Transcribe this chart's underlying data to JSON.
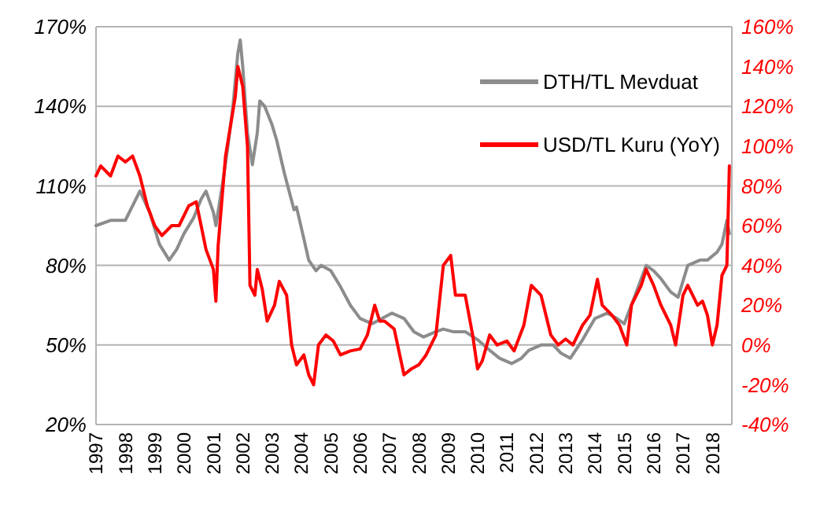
{
  "chart_data": {
    "type": "line",
    "grid": "y",
    "legend": "top right",
    "xlim": [
      "1997-01",
      "2018-09"
    ],
    "xticks": [
      "1997",
      "1998",
      "1999",
      "2000",
      "2001",
      "2002",
      "2003",
      "2004",
      "2005",
      "2006",
      "2007",
      "2008",
      "2009",
      "2010",
      "2011",
      "2012",
      "2013",
      "2014",
      "2015",
      "2016",
      "2017",
      "2018"
    ],
    "ylim": [
      20,
      170
    ],
    "yticks": [
      {
        "value": 20,
        "label": "20%"
      },
      {
        "value": 50,
        "label": "50%"
      },
      {
        "value": 80,
        "label": "80%"
      },
      {
        "value": 110,
        "label": "110%"
      },
      {
        "value": 140,
        "label": "140%"
      },
      {
        "value": 170,
        "label": "170%"
      }
    ],
    "y2lim": [
      -40,
      160
    ],
    "y2ticks": [
      {
        "value": -40,
        "label": "-40%"
      },
      {
        "value": -20,
        "label": "-20%"
      },
      {
        "value": 0,
        "label": "0%"
      },
      {
        "value": 20,
        "label": "20%"
      },
      {
        "value": 40,
        "label": "40%"
      },
      {
        "value": 60,
        "label": "60%"
      },
      {
        "value": 80,
        "label": "80%"
      },
      {
        "value": 100,
        "label": "100%"
      },
      {
        "value": 120,
        "label": "120%"
      },
      {
        "value": 140,
        "label": "140%"
      },
      {
        "value": 160,
        "label": "160%"
      }
    ],
    "series": [
      {
        "name": "DTH/TL Mevduat",
        "color": "#8c8c8c",
        "x": [
          "1997-01",
          "1997-07",
          "1998-01",
          "1998-07",
          "1998-11",
          "1999-03",
          "1999-07",
          "1999-10",
          "2000-01",
          "2000-05",
          "2000-08",
          "2000-10",
          "2001-01",
          "2001-02",
          "2001-05",
          "2001-07",
          "2001-09",
          "2001-11",
          "2001-12",
          "2002-01",
          "2002-03",
          "2002-05",
          "2002-07",
          "2002-08",
          "2002-10",
          "2003-01",
          "2003-03",
          "2003-06",
          "2003-08",
          "2003-10",
          "2003-11",
          "2004-02",
          "2004-04",
          "2004-07",
          "2004-09",
          "2005-01",
          "2005-05",
          "2005-09",
          "2006-01",
          "2006-06",
          "2006-10",
          "2007-02",
          "2007-07",
          "2007-11",
          "2008-03",
          "2008-08",
          "2008-11",
          "2009-03",
          "2009-08",
          "2010-01",
          "2010-06",
          "2010-10",
          "2011-03",
          "2011-07",
          "2011-10",
          "2012-03",
          "2012-08",
          "2012-11",
          "2013-03",
          "2013-08",
          "2014-01",
          "2014-06",
          "2014-10",
          "2015-01",
          "2015-06",
          "2015-10",
          "2016-01",
          "2016-04",
          "2016-08",
          "2016-11",
          "2017-03",
          "2017-08",
          "2017-11",
          "2018-03",
          "2018-05",
          "2018-07",
          "2018-08"
        ],
        "values": [
          95,
          97,
          97,
          108,
          100,
          88,
          82,
          86,
          92,
          98,
          105,
          108,
          100,
          95,
          112,
          125,
          140,
          160,
          165,
          155,
          130,
          118,
          130,
          142,
          140,
          133,
          127,
          115,
          108,
          101,
          102,
          90,
          82,
          78,
          80,
          78,
          72,
          65,
          60,
          58,
          60,
          62,
          60,
          55,
          53,
          55,
          56,
          55,
          55,
          52,
          48,
          45,
          43,
          45,
          48,
          50,
          50,
          47,
          45,
          52,
          60,
          62,
          60,
          58,
          70,
          80,
          78,
          75,
          70,
          68,
          80,
          82,
          82,
          85,
          88,
          97,
          92
        ]
      },
      {
        "name": "USD/TL Kuru (YoY)",
        "color": "#ff0000",
        "axis": "y2",
        "x": [
          "1997-01",
          "1997-03",
          "1997-07",
          "1997-10",
          "1998-01",
          "1998-04",
          "1998-07",
          "1998-10",
          "1999-01",
          "1999-04",
          "1999-08",
          "1999-11",
          "2000-03",
          "2000-06",
          "2000-08",
          "2000-10",
          "2001-01",
          "2001-02",
          "2001-03",
          "2001-06",
          "2001-08",
          "2001-10",
          "2001-11",
          "2002-01",
          "2002-03",
          "2002-04",
          "2002-06",
          "2002-07",
          "2002-09",
          "2002-11",
          "2003-02",
          "2003-04",
          "2003-07",
          "2003-09",
          "2003-11",
          "2004-02",
          "2004-04",
          "2004-06",
          "2004-08",
          "2004-11",
          "2005-02",
          "2005-05",
          "2005-09",
          "2006-01",
          "2006-04",
          "2006-07",
          "2006-09",
          "2006-11",
          "2007-03",
          "2007-07",
          "2007-10",
          "2008-01",
          "2008-04",
          "2008-08",
          "2008-11",
          "2009-02",
          "2009-04",
          "2009-08",
          "2009-11",
          "2010-01",
          "2010-03",
          "2010-06",
          "2010-09",
          "2011-01",
          "2011-04",
          "2011-08",
          "2011-11",
          "2012-03",
          "2012-07",
          "2012-10",
          "2013-01",
          "2013-04",
          "2013-08",
          "2013-11",
          "2014-02",
          "2014-04",
          "2014-08",
          "2014-11",
          "2015-02",
          "2015-04",
          "2015-08",
          "2015-10",
          "2016-01",
          "2016-04",
          "2016-08",
          "2016-10",
          "2017-01",
          "2017-03",
          "2017-07",
          "2017-09",
          "2017-11",
          "2018-01",
          "2018-03",
          "2018-05",
          "2018-07",
          "2018-08"
        ],
        "values": [
          85,
          90,
          85,
          95,
          92,
          95,
          85,
          70,
          60,
          55,
          60,
          60,
          70,
          72,
          60,
          48,
          38,
          22,
          50,
          95,
          110,
          125,
          140,
          130,
          100,
          30,
          25,
          38,
          28,
          12,
          20,
          32,
          25,
          0,
          -10,
          -5,
          -15,
          -20,
          0,
          5,
          2,
          -5,
          -3,
          -2,
          5,
          20,
          12,
          12,
          8,
          -15,
          -12,
          -10,
          -5,
          5,
          40,
          45,
          25,
          25,
          5,
          -12,
          -8,
          5,
          0,
          2,
          -3,
          10,
          30,
          25,
          5,
          0,
          3,
          0,
          10,
          15,
          33,
          20,
          15,
          10,
          0,
          20,
          30,
          38,
          30,
          20,
          10,
          0,
          25,
          30,
          20,
          22,
          15,
          0,
          10,
          35,
          40,
          90
        ]
      }
    ]
  }
}
